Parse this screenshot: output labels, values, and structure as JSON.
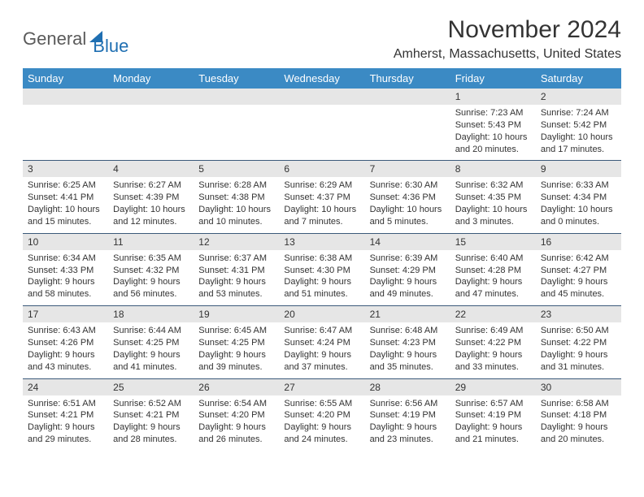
{
  "logo": {
    "part1": "General",
    "part2": "Blue"
  },
  "title": "November 2024",
  "location": "Amherst, Massachusetts, United States",
  "colors": {
    "header_bg": "#3b8ac4",
    "header_fg": "#ffffff",
    "daynum_bg": "#e6e6e6",
    "row_border": "#3b5a7a",
    "text": "#333333",
    "logo_gray": "#5a5a5a",
    "logo_blue": "#1f6fb2",
    "background": "#ffffff"
  },
  "typography": {
    "title_fontsize": 30,
    "location_fontsize": 16,
    "dayheader_fontsize": 13,
    "daynum_fontsize": 12,
    "body_fontsize": 11,
    "font_family": "Arial"
  },
  "day_headers": [
    "Sunday",
    "Monday",
    "Tuesday",
    "Wednesday",
    "Thursday",
    "Friday",
    "Saturday"
  ],
  "weeks": [
    [
      null,
      null,
      null,
      null,
      null,
      {
        "n": "1",
        "sr": "Sunrise: 7:23 AM",
        "ss": "Sunset: 5:43 PM",
        "dl": "Daylight: 10 hours and 20 minutes."
      },
      {
        "n": "2",
        "sr": "Sunrise: 7:24 AM",
        "ss": "Sunset: 5:42 PM",
        "dl": "Daylight: 10 hours and 17 minutes."
      }
    ],
    [
      {
        "n": "3",
        "sr": "Sunrise: 6:25 AM",
        "ss": "Sunset: 4:41 PM",
        "dl": "Daylight: 10 hours and 15 minutes."
      },
      {
        "n": "4",
        "sr": "Sunrise: 6:27 AM",
        "ss": "Sunset: 4:39 PM",
        "dl": "Daylight: 10 hours and 12 minutes."
      },
      {
        "n": "5",
        "sr": "Sunrise: 6:28 AM",
        "ss": "Sunset: 4:38 PM",
        "dl": "Daylight: 10 hours and 10 minutes."
      },
      {
        "n": "6",
        "sr": "Sunrise: 6:29 AM",
        "ss": "Sunset: 4:37 PM",
        "dl": "Daylight: 10 hours and 7 minutes."
      },
      {
        "n": "7",
        "sr": "Sunrise: 6:30 AM",
        "ss": "Sunset: 4:36 PM",
        "dl": "Daylight: 10 hours and 5 minutes."
      },
      {
        "n": "8",
        "sr": "Sunrise: 6:32 AM",
        "ss": "Sunset: 4:35 PM",
        "dl": "Daylight: 10 hours and 3 minutes."
      },
      {
        "n": "9",
        "sr": "Sunrise: 6:33 AM",
        "ss": "Sunset: 4:34 PM",
        "dl": "Daylight: 10 hours and 0 minutes."
      }
    ],
    [
      {
        "n": "10",
        "sr": "Sunrise: 6:34 AM",
        "ss": "Sunset: 4:33 PM",
        "dl": "Daylight: 9 hours and 58 minutes."
      },
      {
        "n": "11",
        "sr": "Sunrise: 6:35 AM",
        "ss": "Sunset: 4:32 PM",
        "dl": "Daylight: 9 hours and 56 minutes."
      },
      {
        "n": "12",
        "sr": "Sunrise: 6:37 AM",
        "ss": "Sunset: 4:31 PM",
        "dl": "Daylight: 9 hours and 53 minutes."
      },
      {
        "n": "13",
        "sr": "Sunrise: 6:38 AM",
        "ss": "Sunset: 4:30 PM",
        "dl": "Daylight: 9 hours and 51 minutes."
      },
      {
        "n": "14",
        "sr": "Sunrise: 6:39 AM",
        "ss": "Sunset: 4:29 PM",
        "dl": "Daylight: 9 hours and 49 minutes."
      },
      {
        "n": "15",
        "sr": "Sunrise: 6:40 AM",
        "ss": "Sunset: 4:28 PM",
        "dl": "Daylight: 9 hours and 47 minutes."
      },
      {
        "n": "16",
        "sr": "Sunrise: 6:42 AM",
        "ss": "Sunset: 4:27 PM",
        "dl": "Daylight: 9 hours and 45 minutes."
      }
    ],
    [
      {
        "n": "17",
        "sr": "Sunrise: 6:43 AM",
        "ss": "Sunset: 4:26 PM",
        "dl": "Daylight: 9 hours and 43 minutes."
      },
      {
        "n": "18",
        "sr": "Sunrise: 6:44 AM",
        "ss": "Sunset: 4:25 PM",
        "dl": "Daylight: 9 hours and 41 minutes."
      },
      {
        "n": "19",
        "sr": "Sunrise: 6:45 AM",
        "ss": "Sunset: 4:25 PM",
        "dl": "Daylight: 9 hours and 39 minutes."
      },
      {
        "n": "20",
        "sr": "Sunrise: 6:47 AM",
        "ss": "Sunset: 4:24 PM",
        "dl": "Daylight: 9 hours and 37 minutes."
      },
      {
        "n": "21",
        "sr": "Sunrise: 6:48 AM",
        "ss": "Sunset: 4:23 PM",
        "dl": "Daylight: 9 hours and 35 minutes."
      },
      {
        "n": "22",
        "sr": "Sunrise: 6:49 AM",
        "ss": "Sunset: 4:22 PM",
        "dl": "Daylight: 9 hours and 33 minutes."
      },
      {
        "n": "23",
        "sr": "Sunrise: 6:50 AM",
        "ss": "Sunset: 4:22 PM",
        "dl": "Daylight: 9 hours and 31 minutes."
      }
    ],
    [
      {
        "n": "24",
        "sr": "Sunrise: 6:51 AM",
        "ss": "Sunset: 4:21 PM",
        "dl": "Daylight: 9 hours and 29 minutes."
      },
      {
        "n": "25",
        "sr": "Sunrise: 6:52 AM",
        "ss": "Sunset: 4:21 PM",
        "dl": "Daylight: 9 hours and 28 minutes."
      },
      {
        "n": "26",
        "sr": "Sunrise: 6:54 AM",
        "ss": "Sunset: 4:20 PM",
        "dl": "Daylight: 9 hours and 26 minutes."
      },
      {
        "n": "27",
        "sr": "Sunrise: 6:55 AM",
        "ss": "Sunset: 4:20 PM",
        "dl": "Daylight: 9 hours and 24 minutes."
      },
      {
        "n": "28",
        "sr": "Sunrise: 6:56 AM",
        "ss": "Sunset: 4:19 PM",
        "dl": "Daylight: 9 hours and 23 minutes."
      },
      {
        "n": "29",
        "sr": "Sunrise: 6:57 AM",
        "ss": "Sunset: 4:19 PM",
        "dl": "Daylight: 9 hours and 21 minutes."
      },
      {
        "n": "30",
        "sr": "Sunrise: 6:58 AM",
        "ss": "Sunset: 4:18 PM",
        "dl": "Daylight: 9 hours and 20 minutes."
      }
    ]
  ]
}
